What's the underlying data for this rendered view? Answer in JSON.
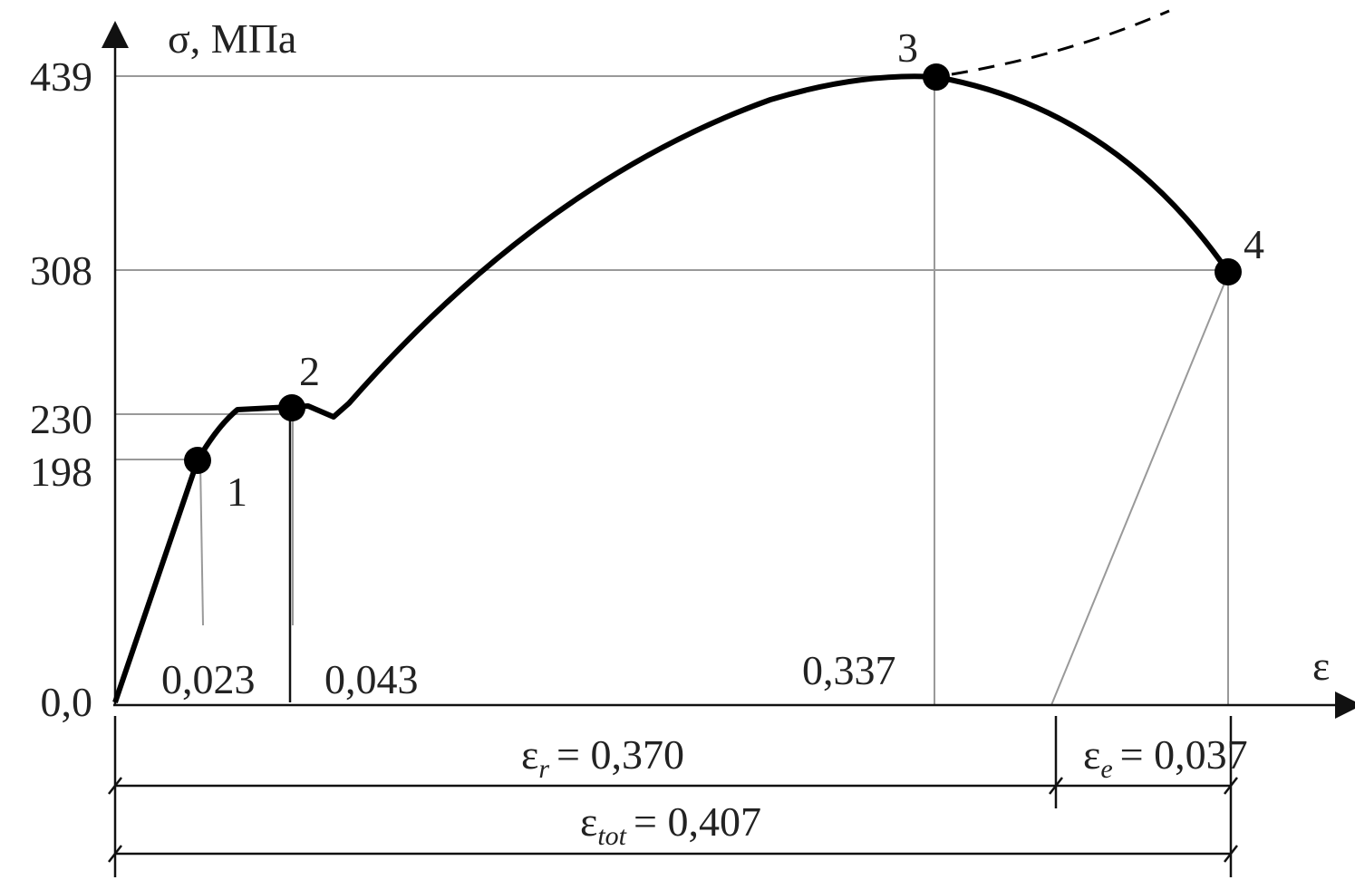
{
  "axes": {
    "y_label": "σ, МПа",
    "x_label": "ε"
  },
  "y_labels": [
    "439",
    "308",
    "230",
    "198",
    "0,0"
  ],
  "x_labels": [
    "0,023",
    "0,043",
    "0,337"
  ],
  "points": [
    "1",
    "2",
    "3",
    "4"
  ],
  "dimensions": [
    {
      "symbol": "ε",
      "subscript": "r",
      "text": "= 0,370"
    },
    {
      "symbol": "ε",
      "subscript": "e",
      "text": "= 0,037"
    },
    {
      "symbol": "ε",
      "subscript": "tot",
      "text": "= 0,407"
    }
  ]
}
